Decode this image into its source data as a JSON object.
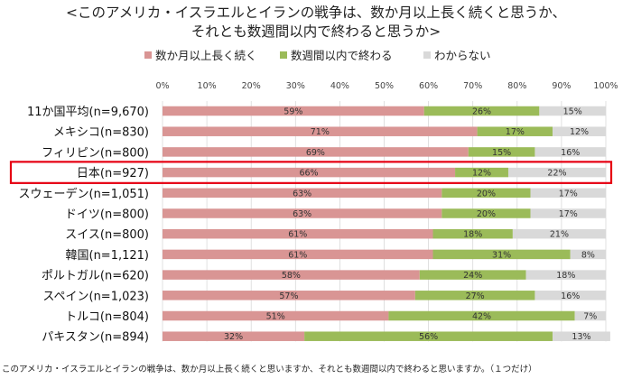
{
  "title_line1": "<このアメリカ・イスラエルとイランの戦争は、数か月以上長く続くと思うか、",
  "title_line2": "それとも数週間以内で終わると思うか>",
  "footnote": "このアメリカ・イスラエルとイランの戦争は、数か月以上長く続くと思いますか、それとも数週間以内で終わると思いますか。（１つだけ）",
  "chart_data": {
    "type": "bar",
    "orientation": "horizontal",
    "stacked": true,
    "percent_stacked": true,
    "legend_position": "top",
    "xlim": [
      0,
      100
    ],
    "x_ticks": [
      "0%",
      "10%",
      "20%",
      "30%",
      "40%",
      "50%",
      "60%",
      "70%",
      "80%",
      "90%",
      "100%"
    ],
    "categories": [
      "11か国平均(n=9,670)",
      "メキシコ(n=830)",
      "フィリピン(n=800)",
      "日本(n=927)",
      "スウェーデン(n=1,051)",
      "ドイツ(n=800)",
      "スイス(n=800)",
      "韓国(n=1,121)",
      "ポルトガル(n=620)",
      "スペイン(n=1,023)",
      "トルコ(n=804)",
      "パキスタン(n=894)"
    ],
    "highlighted_category": "日本(n=927)",
    "highlight_color": "#e60012",
    "series": [
      {
        "name": "数か月以上長く続く",
        "color": "#d99594",
        "values": [
          59,
          71,
          69,
          66,
          63,
          63,
          61,
          61,
          58,
          57,
          51,
          32
        ]
      },
      {
        "name": "数週間以内で終わる",
        "color": "#9bbb59",
        "values": [
          26,
          17,
          15,
          12,
          20,
          20,
          18,
          31,
          24,
          27,
          42,
          56
        ]
      },
      {
        "name": "わからない",
        "color": "#d9d9d9",
        "values": [
          15,
          12,
          16,
          22,
          17,
          17,
          21,
          8,
          18,
          16,
          7,
          13
        ]
      }
    ]
  }
}
